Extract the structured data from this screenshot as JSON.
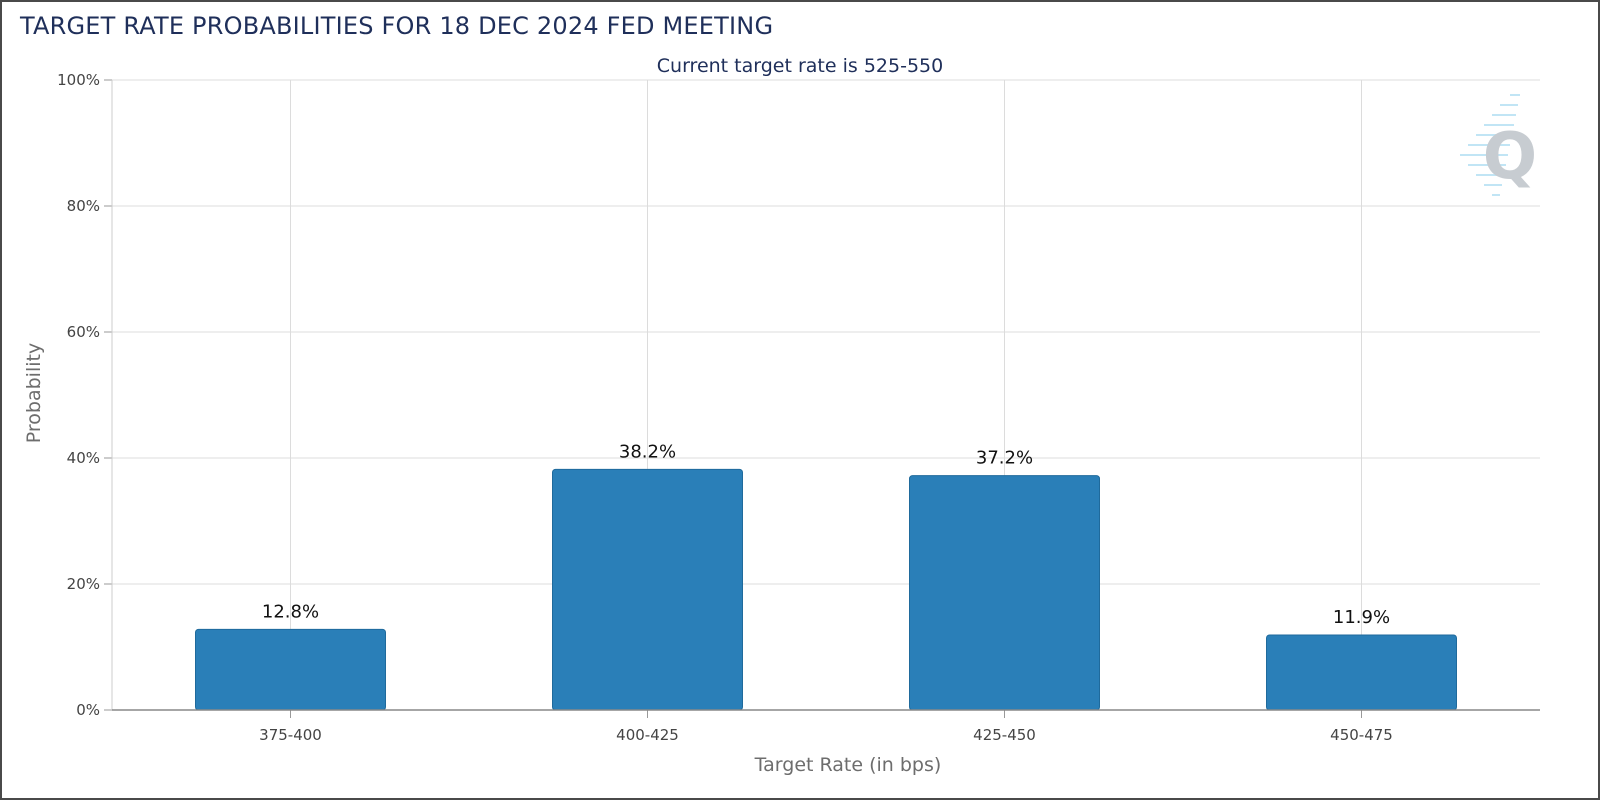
{
  "chart_data": {
    "type": "bar",
    "title": "TARGET RATE PROBABILITIES FOR 18 DEC 2024 FED MEETING",
    "subtitle": "Current target rate is 525-550",
    "categories": [
      "375-400",
      "400-425",
      "425-450",
      "450-475"
    ],
    "values": [
      12.8,
      38.2,
      37.2,
      11.9
    ],
    "data_labels": [
      "12.8%",
      "38.2%",
      "37.2%",
      "11.9%"
    ],
    "xlabel": "Target Rate (in bps)",
    "ylabel": "Probability",
    "ylim": [
      0,
      100
    ],
    "yticks": [
      0,
      20,
      40,
      60,
      80,
      100
    ],
    "ytick_labels": [
      "0%",
      "20%",
      "40%",
      "60%",
      "80%",
      "100%"
    ],
    "grid": true,
    "legend": "none",
    "bar_color": "#2a7fb8"
  },
  "watermark": {
    "icon": "q-logo-icon"
  }
}
